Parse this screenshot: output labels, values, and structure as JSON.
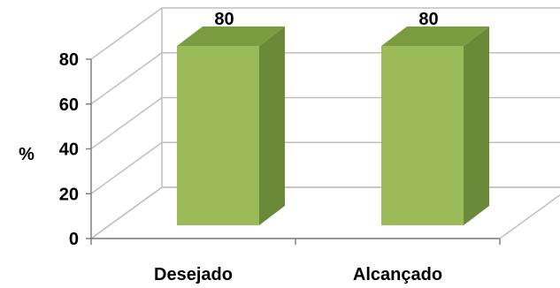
{
  "chart_data": {
    "type": "bar",
    "style": "3d-column",
    "categories": [
      "Desejado",
      "Alcançado"
    ],
    "values": [
      80,
      80
    ],
    "data_labels": [
      "80",
      "80"
    ],
    "ylabel": "%",
    "ylim": [
      0,
      80
    ],
    "yticks": [
      0,
      20,
      40,
      60,
      80
    ],
    "ytick_labels": [
      "0",
      "20",
      "40",
      "60",
      "80"
    ],
    "grid": true,
    "legend": "none",
    "colors": {
      "bar_front": "#9bbb59",
      "bar_side": "#6a8a3a",
      "bar_top": "#7a9b3f",
      "grid": "#bfbfbf",
      "axis": "#808080"
    }
  }
}
